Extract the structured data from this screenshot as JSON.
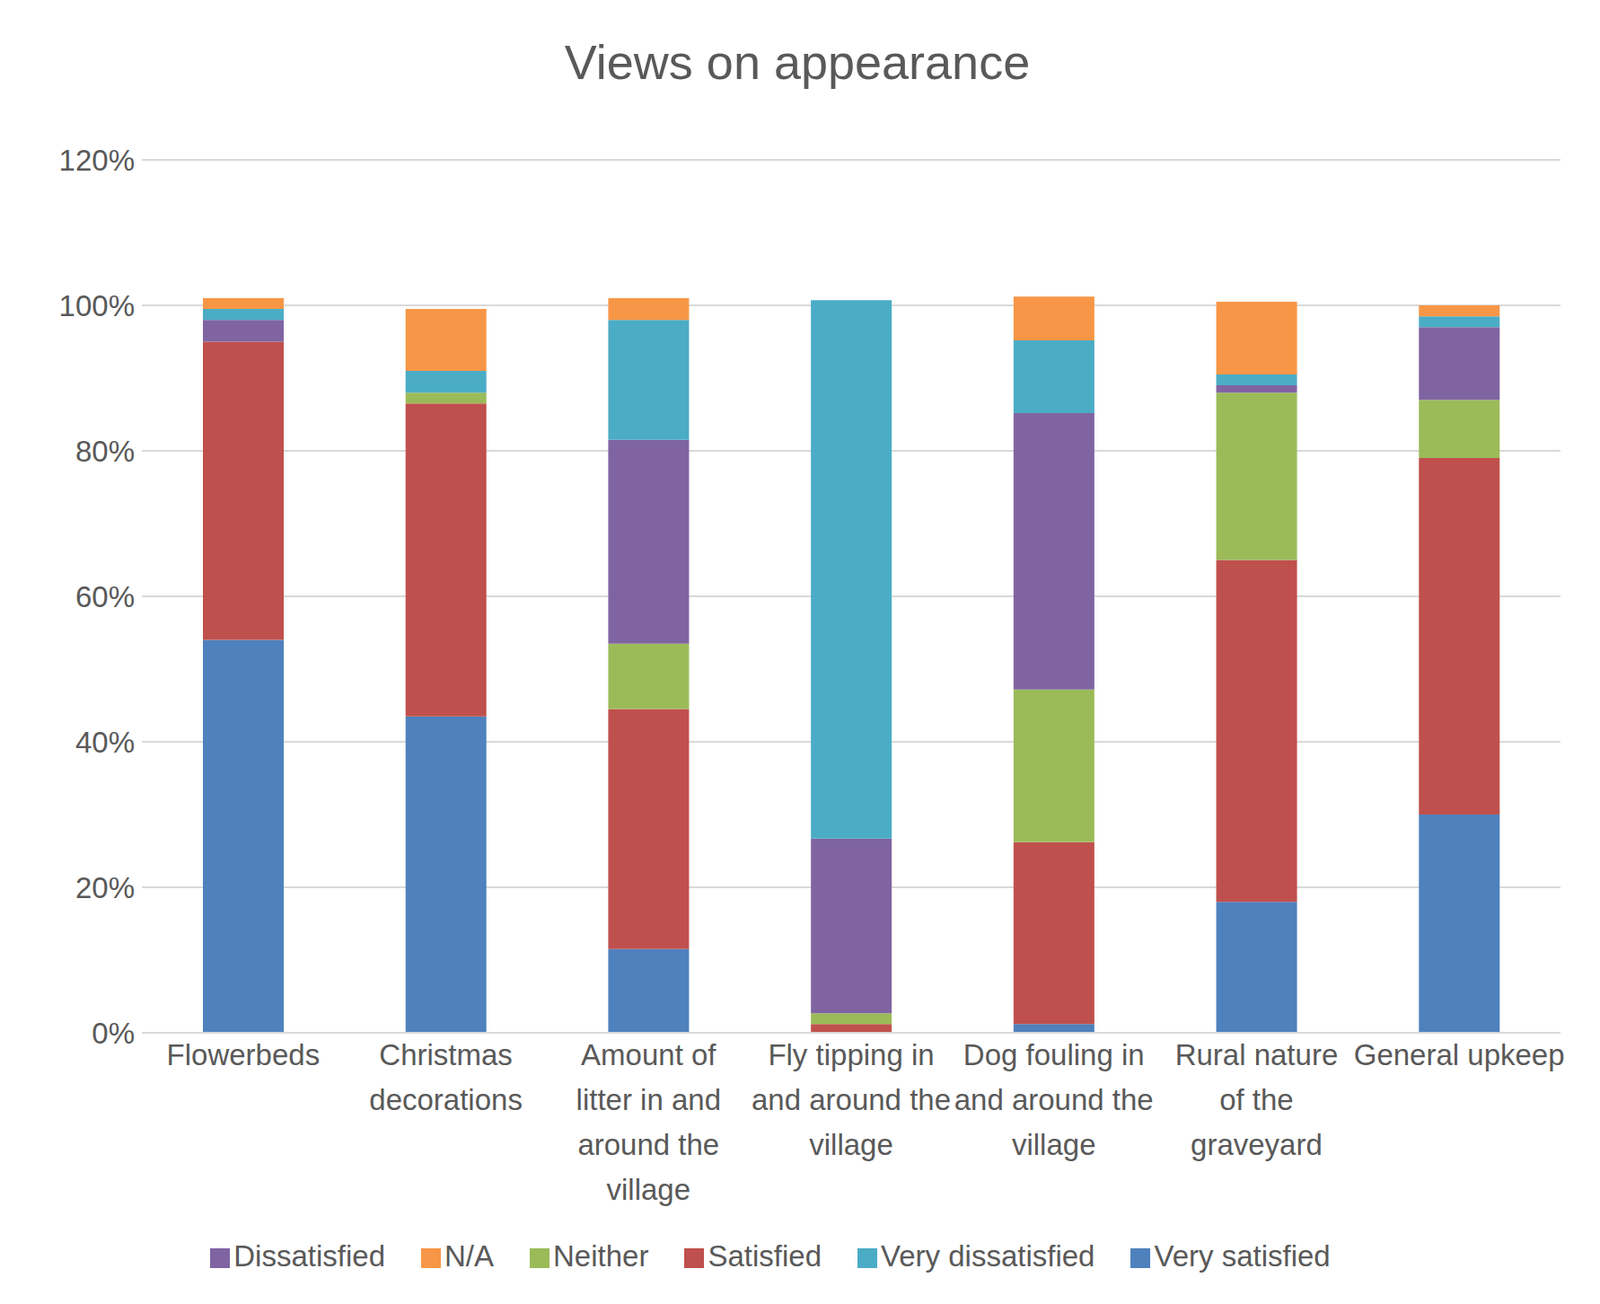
{
  "chart_data": {
    "type": "bar",
    "title": "Views on appearance",
    "stacked": true,
    "grid": true,
    "legend": "bottom",
    "categories": [
      "Flowerbeds",
      "Christmas decorations",
      "Amount of litter in and around the village",
      "Fly tipping in and around the village",
      "Dog fouling in and around the village",
      "Rural nature of the graveyard",
      "General upkeep"
    ],
    "series": [
      {
        "name": "Very satisfied",
        "color": "#4f81bd",
        "values": [
          54,
          43.5,
          11.5,
          0,
          1.2,
          18,
          30
        ]
      },
      {
        "name": "Satisfied",
        "color": "#c0504d",
        "values": [
          41,
          43,
          33,
          1.2,
          25,
          47,
          49
        ]
      },
      {
        "name": "Neither",
        "color": "#9bbb59",
        "values": [
          0,
          1.5,
          9,
          1.5,
          21,
          23,
          8
        ]
      },
      {
        "name": "Dissatisfied",
        "color": "#8064a2",
        "values": [
          3,
          0,
          28,
          24,
          38,
          1,
          10
        ]
      },
      {
        "name": "Very dissatisfied",
        "color": "#4bacc6",
        "values": [
          1.5,
          3,
          16.5,
          74,
          10,
          1.5,
          1.5
        ]
      },
      {
        "name": "N/A",
        "color": "#f79646",
        "values": [
          1.5,
          8.5,
          3,
          0,
          6,
          10,
          1.5
        ]
      }
    ],
    "ylim": [
      0,
      120
    ],
    "yticks": [
      {
        "value": 0,
        "label": "0%"
      },
      {
        "value": 20,
        "label": "20%"
      },
      {
        "value": 40,
        "label": "40%"
      },
      {
        "value": 60,
        "label": "60%"
      },
      {
        "value": 80,
        "label": "80%"
      },
      {
        "value": 100,
        "label": "100%"
      },
      {
        "value": 120,
        "label": "120%"
      }
    ]
  }
}
